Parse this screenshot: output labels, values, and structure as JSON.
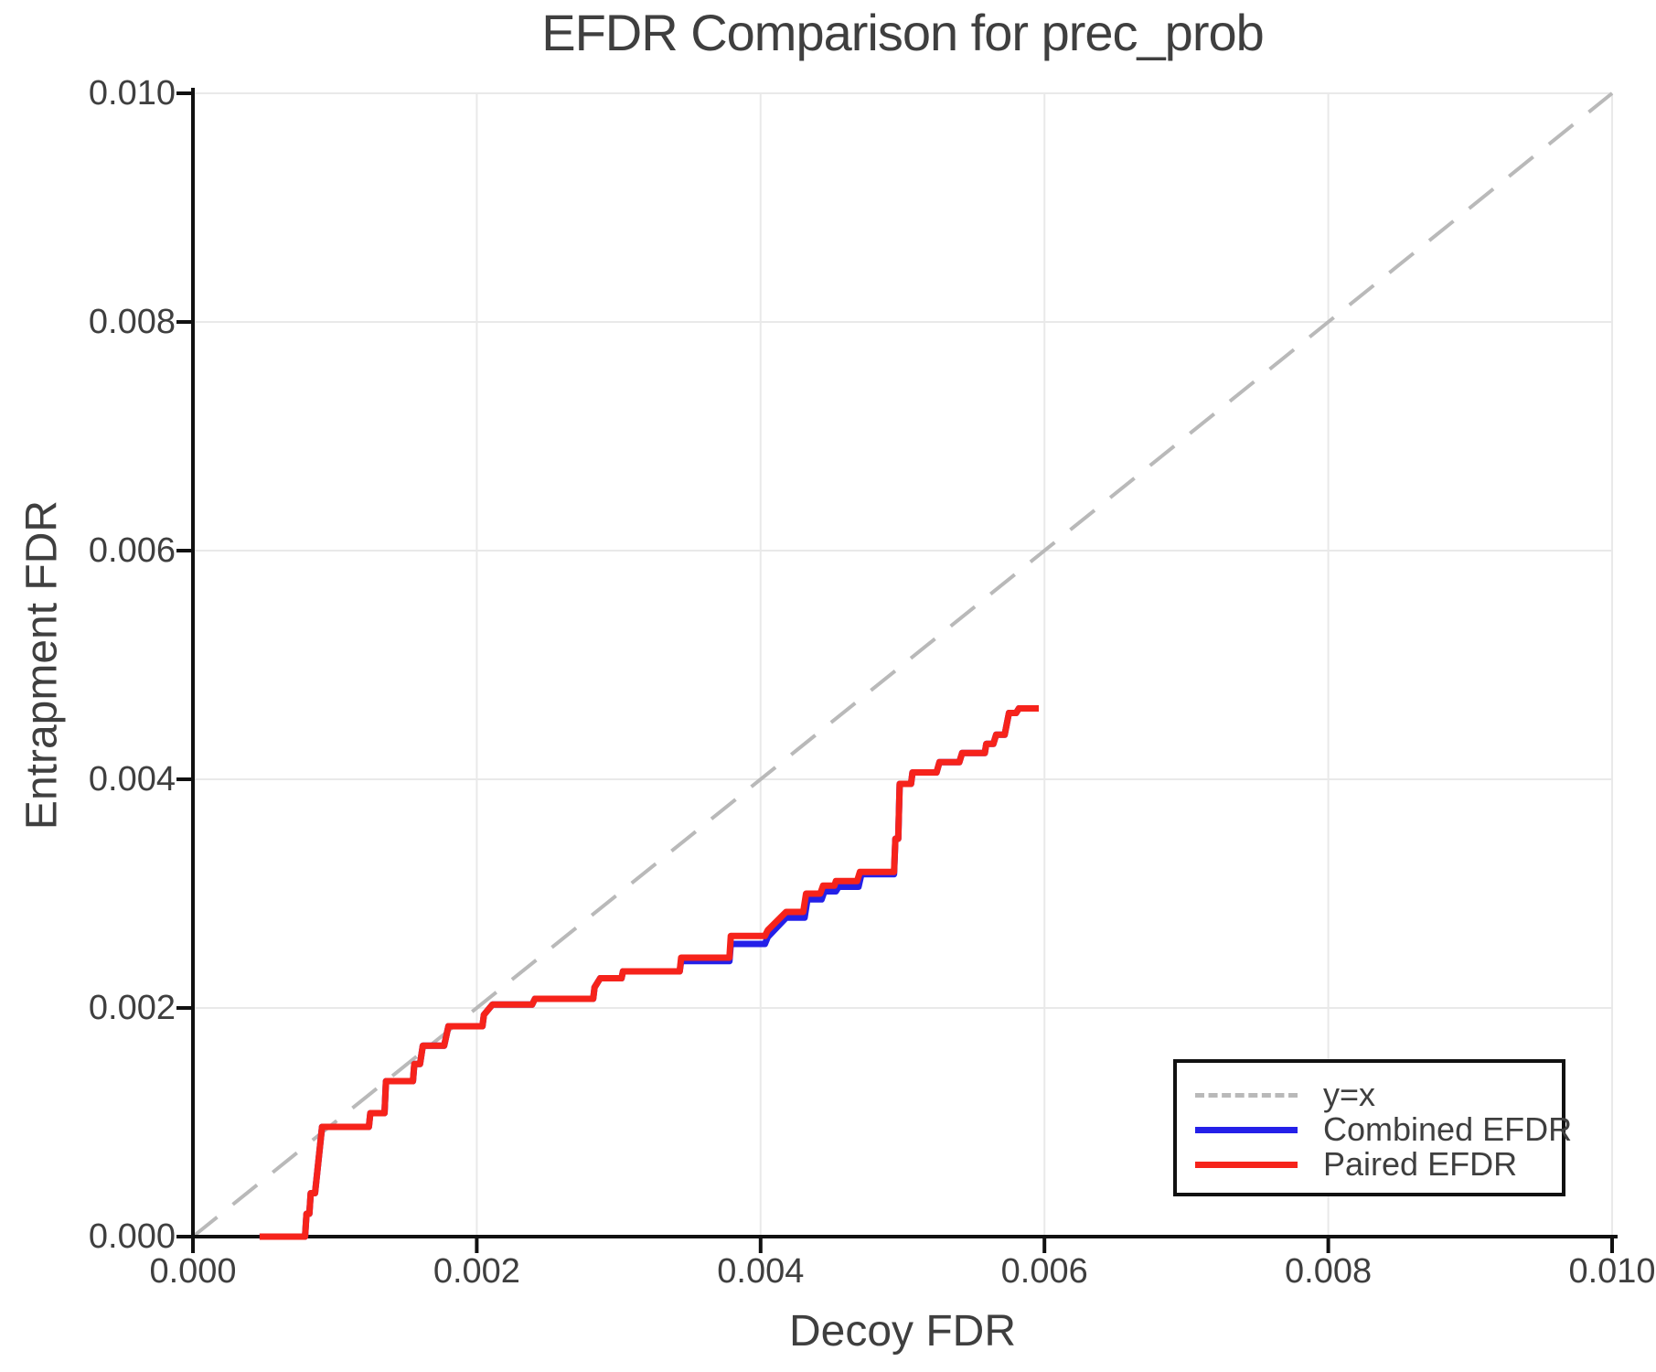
{
  "chart_data": {
    "type": "line",
    "title": "EFDR Comparison for prec_prob",
    "xlabel": "Decoy FDR",
    "ylabel": "Entrapment FDR",
    "xlim": [
      0.0,
      0.01
    ],
    "ylim": [
      0.0,
      0.01
    ],
    "x_ticks": [
      0.0,
      0.002,
      0.004,
      0.006,
      0.008,
      0.01
    ],
    "y_ticks": [
      0.0,
      0.002,
      0.004,
      0.006,
      0.008,
      0.01
    ],
    "x_tick_labels": [
      "0.000",
      "0.002",
      "0.004",
      "0.006",
      "0.008",
      "0.010"
    ],
    "y_tick_labels": [
      "0.000",
      "0.002",
      "0.004",
      "0.006",
      "0.008",
      "0.010"
    ],
    "grid": true,
    "legend_position": "lower right",
    "colors": {
      "identity": "#b9b9b9",
      "combined": "#2420e8",
      "paired": "#f6231b",
      "grid": "#e9e9e9",
      "axis": "#111111",
      "text": "#3f3f3f",
      "background": "#ffffff"
    },
    "legend": [
      {
        "label": "y=x",
        "series": "identity",
        "style": "dashed"
      },
      {
        "label": "Combined EFDR",
        "series": "combined",
        "style": "solid"
      },
      {
        "label": "Paired EFDR",
        "series": "paired",
        "style": "solid"
      }
    ],
    "identity_line": {
      "x": [
        0.0,
        0.01
      ],
      "y": [
        0.0,
        0.01
      ]
    },
    "series": [
      {
        "name": "Combined EFDR",
        "color_key": "combined",
        "x": [
          0.00047,
          0.00079,
          0.0008,
          0.00082,
          0.00083,
          0.00086,
          0.00091,
          0.00124,
          0.00125,
          0.00135,
          0.00136,
          0.00155,
          0.00156,
          0.0016,
          0.00162,
          0.00177,
          0.0018,
          0.00204,
          0.00205,
          0.00211,
          0.00239,
          0.00241,
          0.00282,
          0.00283,
          0.00287,
          0.00302,
          0.00303,
          0.00343,
          0.00344,
          0.00378,
          0.00379,
          0.00403,
          0.00405,
          0.00418,
          0.00431,
          0.00433,
          0.00443,
          0.00445,
          0.00453,
          0.00455,
          0.00469,
          0.00471,
          0.00494,
          0.00495,
          0.00497,
          0.00498,
          0.00506,
          0.00507,
          0.00524,
          0.00526,
          0.0054,
          0.00542,
          0.00558,
          0.00559,
          0.00564,
          0.00566,
          0.00572,
          0.00575,
          0.0058,
          0.00582,
          0.00596
        ],
        "y": [
          0.0,
          0.0,
          0.0002,
          0.0002,
          0.00038,
          0.00038,
          0.00096,
          0.00096,
          0.00108,
          0.00108,
          0.00136,
          0.00136,
          0.00151,
          0.00151,
          0.00167,
          0.00167,
          0.00184,
          0.00184,
          0.00194,
          0.00203,
          0.00203,
          0.00208,
          0.00208,
          0.00218,
          0.00226,
          0.00226,
          0.00232,
          0.00232,
          0.00241,
          0.00241,
          0.00256,
          0.00256,
          0.00262,
          0.00279,
          0.00279,
          0.00295,
          0.00295,
          0.00302,
          0.00302,
          0.00306,
          0.00306,
          0.00317,
          0.00317,
          0.00348,
          0.00348,
          0.00396,
          0.00396,
          0.00406,
          0.00406,
          0.00415,
          0.00415,
          0.00423,
          0.00423,
          0.00431,
          0.00431,
          0.00439,
          0.00439,
          0.00458,
          0.00458,
          0.00462,
          0.00462
        ]
      },
      {
        "name": "Paired EFDR",
        "color_key": "paired",
        "x": [
          0.00047,
          0.00079,
          0.0008,
          0.00082,
          0.00083,
          0.00086,
          0.00091,
          0.00124,
          0.00125,
          0.00135,
          0.00136,
          0.00155,
          0.00156,
          0.0016,
          0.00162,
          0.00177,
          0.0018,
          0.00204,
          0.00205,
          0.00211,
          0.00239,
          0.00241,
          0.00282,
          0.00283,
          0.00287,
          0.00302,
          0.00303,
          0.00343,
          0.00344,
          0.00378,
          0.00379,
          0.00403,
          0.00405,
          0.00418,
          0.0043,
          0.00432,
          0.00442,
          0.00444,
          0.00452,
          0.00453,
          0.00468,
          0.0047,
          0.00494,
          0.00495,
          0.00497,
          0.00498,
          0.00506,
          0.00507,
          0.00524,
          0.00526,
          0.0054,
          0.00542,
          0.00558,
          0.00559,
          0.00564,
          0.00566,
          0.00572,
          0.00575,
          0.0058,
          0.00582,
          0.00596
        ],
        "y": [
          0.0,
          0.0,
          0.0002,
          0.0002,
          0.00038,
          0.00038,
          0.00096,
          0.00096,
          0.00108,
          0.00108,
          0.00136,
          0.00136,
          0.00151,
          0.00151,
          0.00167,
          0.00167,
          0.00184,
          0.00184,
          0.00194,
          0.00203,
          0.00203,
          0.00208,
          0.00208,
          0.00218,
          0.00226,
          0.00226,
          0.00232,
          0.00232,
          0.00244,
          0.00244,
          0.00263,
          0.00263,
          0.00268,
          0.00284,
          0.00284,
          0.003,
          0.003,
          0.00307,
          0.00307,
          0.00311,
          0.00311,
          0.00319,
          0.00319,
          0.00348,
          0.00348,
          0.00396,
          0.00396,
          0.00406,
          0.00406,
          0.00415,
          0.00415,
          0.00423,
          0.00423,
          0.00431,
          0.00431,
          0.00439,
          0.00439,
          0.00458,
          0.00458,
          0.00462,
          0.00462
        ]
      }
    ]
  }
}
